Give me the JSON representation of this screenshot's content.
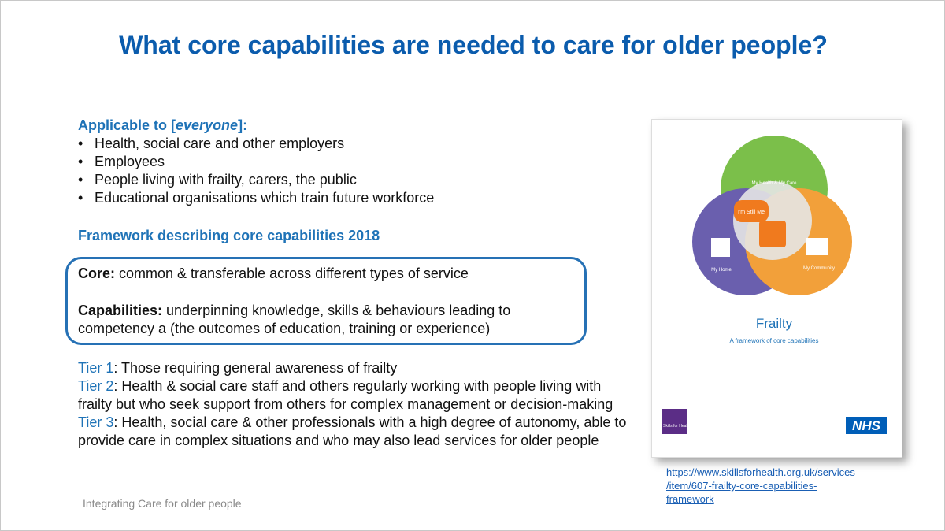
{
  "title": "What core capabilities are needed to care for older people?",
  "applicable": {
    "before": "Applicable to [",
    "emphasis": "everyone",
    "after": "]:",
    "items": [
      "Health, social care and other employers",
      "Employees",
      "People living with frailty, carers, the public",
      "Educational organisations which train future workforce"
    ]
  },
  "framework_heading": "Framework describing core capabilities 2018",
  "definitions": [
    {
      "term": "Core:",
      "text": " common & transferable across different types of service"
    },
    {
      "term": "Capabilities:",
      "text": " underpinning knowledge, skills & behaviours leading to competency a (the outcomes of education, training or experience)"
    }
  ],
  "tiers": [
    {
      "label": "Tier 1",
      "text": ": Those requiring  general awareness of frailty"
    },
    {
      "label": "Tier 2",
      "text": ": Health & social care staff and others regularly working with people living with frailty but who seek support from others for complex management or decision-making"
    },
    {
      "label": "Tier 3",
      "text": ": Health, social care & other professionals with a high degree of autonomy, able to provide care in complex situations and who may also lead services for older people"
    }
  ],
  "footer": "Integrating Care for older people",
  "cover": {
    "circle_top": "My Health & My Care",
    "center": "I'm Still Me",
    "circle_left": "My Home",
    "circle_right": "My Community",
    "title": "Frailty",
    "subtitle": "A framework of core capabilities",
    "logo_left": "Skills for Health",
    "logo_right": "NHS"
  },
  "link": {
    "lines": [
      "https://www.skillsforhealth.org.uk/services",
      "/item/607-frailty-core-capabilities-",
      "framework"
    ]
  }
}
